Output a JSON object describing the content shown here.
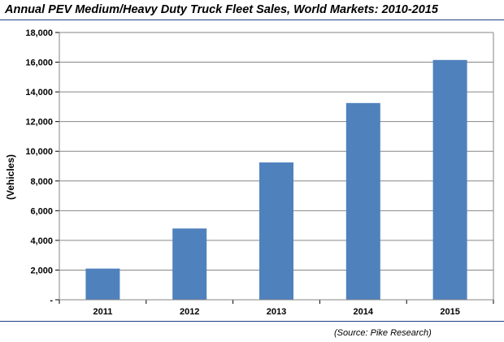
{
  "header": {
    "title": "Annual PEV Medium/Heavy Duty Truck Fleet Sales, World Markets:  2010-2015"
  },
  "footer": {
    "source": "(Source: Pike Research)"
  },
  "colors": {
    "bar": "#4f81bd",
    "rule": "#1f3f7f",
    "grid": "#868686"
  },
  "chart_data": {
    "type": "bar",
    "title": "Annual PEV Medium/Heavy Duty Truck Fleet Sales, World Markets:  2010-2015",
    "xlabel": "",
    "ylabel": "(Vehicles)",
    "categories": [
      "2011",
      "2012",
      "2013",
      "2014",
      "2015"
    ],
    "values": [
      2100,
      4800,
      9250,
      13250,
      16150
    ],
    "ylim": [
      0,
      18000
    ],
    "yticks": [
      0,
      2000,
      4000,
      6000,
      8000,
      10000,
      12000,
      14000,
      16000,
      18000
    ],
    "ytick_labels": [
      "-",
      "2,000",
      "4,000",
      "6,000",
      "8,000",
      "10,000",
      "12,000",
      "14,000",
      "16,000",
      "18,000"
    ],
    "grid": true,
    "legend": "none"
  }
}
